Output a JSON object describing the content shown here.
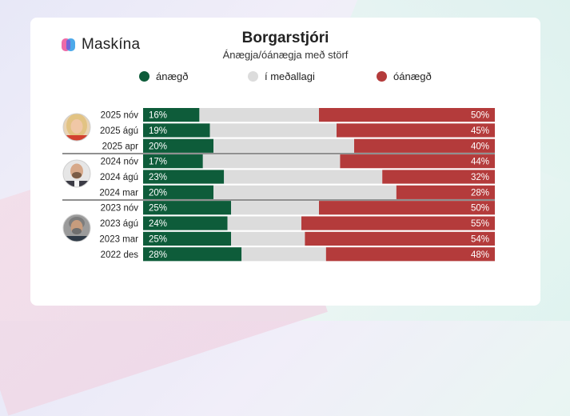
{
  "brand": {
    "name": "Maskína"
  },
  "colors": {
    "satisfied": "#0e5c3a",
    "neutral": "#dcdcdc",
    "dissatisfied": "#b43b3b",
    "logo_pink": "#ee6aa8",
    "logo_blue": "#3aa0e8"
  },
  "chart_data": {
    "type": "bar",
    "orientation": "horizontal",
    "stacked": true,
    "title": "Borgarstjóri",
    "subtitle": "Ánægja/óánægja með störf",
    "legend": [
      "ánægð",
      "í meðallagi",
      "óánægð"
    ],
    "legend_position": "top",
    "categories": [
      "2025 nóv",
      "2025 ágú",
      "2025 apr",
      "2024 nóv",
      "2024 ágú",
      "2024 mar",
      "2023 nóv",
      "2023 ágú",
      "2023 mar",
      "2022 des"
    ],
    "series": [
      {
        "name": "ánægð",
        "values": [
          16,
          19,
          20,
          17,
          23,
          20,
          25,
          24,
          25,
          28
        ]
      },
      {
        "name": "í meðallagi",
        "values": [
          34,
          36,
          40,
          39,
          45,
          52,
          25,
          21,
          21,
          24
        ]
      },
      {
        "name": "óánægð",
        "values": [
          50,
          45,
          40,
          44,
          32,
          28,
          50,
          55,
          54,
          48
        ]
      }
    ],
    "value_labels": {
      "satisfied": [
        "16%",
        "19%",
        "20%",
        "17%",
        "23%",
        "20%",
        "25%",
        "24%",
        "25%",
        "28%"
      ],
      "dissatisfied": [
        "50%",
        "45%",
        "40%",
        "44%",
        "32%",
        "28%",
        "50%",
        "55%",
        "54%",
        "48%"
      ]
    },
    "xlim": [
      0,
      100
    ],
    "groups": [
      {
        "label": "mayor-2025",
        "rows": [
          0,
          1,
          2
        ],
        "avatar": "woman-blonde"
      },
      {
        "label": "mayor-2024",
        "rows": [
          3,
          4,
          5
        ],
        "avatar": "man-bald"
      },
      {
        "label": "mayor-2023",
        "rows": [
          6,
          7,
          8,
          9
        ],
        "avatar": "man-grey-hair"
      }
    ]
  }
}
